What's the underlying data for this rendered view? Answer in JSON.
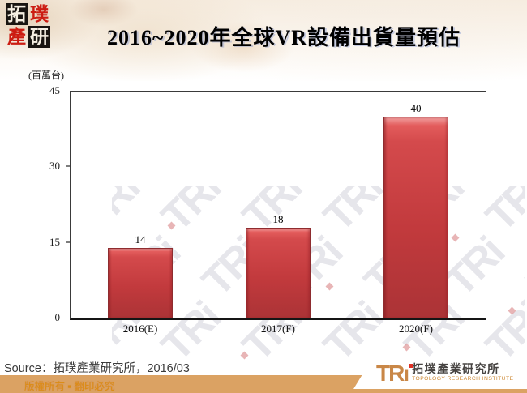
{
  "slide": {
    "corner_logo": {
      "chars": [
        "拓",
        "璞",
        "產",
        "研"
      ]
    },
    "title": "2016~2020年全球VR設備出貨量預估",
    "source": "Source：拓璞產業研究所，2016/03",
    "copyright": "版權所有 ▪ 翻印必究",
    "watermark_text": "TRi",
    "footer_logo": {
      "acronym_tr": "TR",
      "acronym_i": "ı",
      "name_zh": "拓墣產業研究所",
      "name_en": "TOPOLOGY RESEARCH INSTITUTE"
    }
  },
  "chart_data": {
    "type": "bar",
    "title": "2016~2020年全球VR設備出貨量預估",
    "unit_label": "(百萬台)",
    "categories": [
      "2016(E)",
      "2017(F)",
      "2020(F)"
    ],
    "values": [
      14,
      18,
      40
    ],
    "yticks": [
      0,
      15,
      30,
      45
    ],
    "ylim": [
      0,
      45
    ],
    "xlabel": "",
    "ylabel": "(百萬台)",
    "grid": false,
    "legend": null,
    "bar_color": "#c23a3d",
    "bar_border_color": "#8e2c2f"
  }
}
